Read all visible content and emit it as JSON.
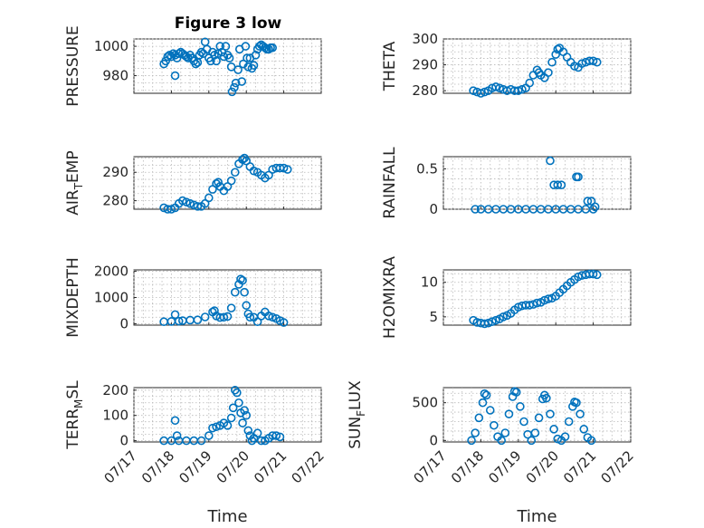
{
  "figure_title": "Figure 3 low",
  "colors": {
    "marker": "#0072bd",
    "axis": "#262626",
    "grid": "#b8b8b8"
  },
  "chart_data": [
    {
      "type": "scatter",
      "ylabel": "PRESSURE",
      "ylim": [
        968,
        1005
      ],
      "yticks": [
        980,
        1000
      ],
      "x": [
        "07/17",
        "07/18",
        "07/19",
        "07/20",
        "07/21",
        "07/22"
      ],
      "grid": true,
      "points": [
        [
          1.8,
          988
        ],
        [
          1.85,
          990
        ],
        [
          1.9,
          993
        ],
        [
          1.95,
          994
        ],
        [
          2.0,
          993
        ],
        [
          2.05,
          995
        ],
        [
          2.1,
          994
        ],
        [
          2.15,
          992
        ],
        [
          2.2,
          995
        ],
        [
          2.25,
          996
        ],
        [
          2.3,
          995
        ],
        [
          2.35,
          994
        ],
        [
          2.4,
          993
        ],
        [
          2.45,
          992
        ],
        [
          2.5,
          994
        ],
        [
          2.55,
          992
        ],
        [
          2.6,
          990
        ],
        [
          2.65,
          988
        ],
        [
          2.7,
          989
        ],
        [
          2.75,
          994
        ],
        [
          2.8,
          996
        ],
        [
          2.85,
          995
        ],
        [
          2.9,
          1003
        ],
        [
          2.95,
          998
        ],
        [
          3.0,
          992
        ],
        [
          3.05,
          990
        ],
        [
          3.1,
          996
        ],
        [
          3.15,
          994
        ],
        [
          3.2,
          990
        ],
        [
          3.25,
          995
        ],
        [
          3.3,
          1000
        ],
        [
          3.35,
          996
        ],
        [
          3.4,
          993
        ],
        [
          3.45,
          1000
        ],
        [
          3.5,
          994
        ],
        [
          3.55,
          992
        ],
        [
          3.6,
          986
        ],
        [
          3.62,
          969
        ],
        [
          3.68,
          972
        ],
        [
          3.72,
          975
        ],
        [
          3.78,
          984
        ],
        [
          3.82,
          998
        ],
        [
          3.88,
          976
        ],
        [
          3.92,
          988
        ],
        [
          3.98,
          1000
        ],
        [
          4.02,
          992
        ],
        [
          4.05,
          986
        ],
        [
          4.1,
          992
        ],
        [
          4.15,
          985
        ],
        [
          4.2,
          987
        ],
        [
          4.25,
          994
        ],
        [
          4.3,
          998
        ],
        [
          4.35,
          1000
        ],
        [
          4.4,
          1001
        ],
        [
          4.45,
          1000
        ],
        [
          4.5,
          999
        ],
        [
          4.55,
          998
        ],
        [
          4.6,
          998
        ],
        [
          4.65,
          999
        ],
        [
          4.7,
          999
        ],
        [
          2.1,
          980
        ]
      ]
    },
    {
      "type": "scatter",
      "ylabel": "THETA",
      "ylim": [
        279,
        300
      ],
      "yticks": [
        280,
        290,
        300
      ],
      "x": [
        "07/17",
        "07/18",
        "07/19",
        "07/20",
        "07/21",
        "07/22"
      ],
      "grid": true,
      "points": [
        [
          1.8,
          280
        ],
        [
          1.9,
          279.5
        ],
        [
          2.0,
          279
        ],
        [
          2.1,
          279.5
        ],
        [
          2.2,
          280
        ],
        [
          2.3,
          281
        ],
        [
          2.4,
          281.5
        ],
        [
          2.5,
          281
        ],
        [
          2.6,
          280.5
        ],
        [
          2.7,
          280
        ],
        [
          2.8,
          280.5
        ],
        [
          2.9,
          280
        ],
        [
          3.0,
          280
        ],
        [
          3.1,
          280.5
        ],
        [
          3.2,
          281
        ],
        [
          3.3,
          283
        ],
        [
          3.4,
          286
        ],
        [
          3.5,
          288
        ],
        [
          3.55,
          287
        ],
        [
          3.6,
          286
        ],
        [
          3.7,
          285
        ],
        [
          3.8,
          287
        ],
        [
          3.9,
          291
        ],
        [
          4.0,
          294
        ],
        [
          4.05,
          296
        ],
        [
          4.1,
          296.5
        ],
        [
          4.2,
          295
        ],
        [
          4.3,
          293
        ],
        [
          4.4,
          291
        ],
        [
          4.5,
          289.5
        ],
        [
          4.6,
          289
        ],
        [
          4.7,
          290.5
        ],
        [
          4.8,
          291
        ],
        [
          4.9,
          291.5
        ],
        [
          5.0,
          291.5
        ],
        [
          5.1,
          291
        ]
      ]
    },
    {
      "type": "scatter",
      "ylabel": "AIR_TEMP",
      "ylim": [
        277,
        295.5
      ],
      "yticks": [
        280,
        290
      ],
      "x": [
        "07/17",
        "07/18",
        "07/19",
        "07/20",
        "07/21",
        "07/22"
      ],
      "grid": true,
      "points": [
        [
          1.8,
          277.5
        ],
        [
          1.9,
          277
        ],
        [
          2.0,
          277
        ],
        [
          2.1,
          277.5
        ],
        [
          2.2,
          279
        ],
        [
          2.3,
          280
        ],
        [
          2.4,
          279.5
        ],
        [
          2.5,
          279
        ],
        [
          2.6,
          278.5
        ],
        [
          2.7,
          278
        ],
        [
          2.8,
          278
        ],
        [
          2.9,
          279
        ],
        [
          3.0,
          281
        ],
        [
          3.1,
          284
        ],
        [
          3.2,
          286
        ],
        [
          3.25,
          286.5
        ],
        [
          3.3,
          285
        ],
        [
          3.4,
          283.5
        ],
        [
          3.5,
          285
        ],
        [
          3.6,
          287
        ],
        [
          3.7,
          290
        ],
        [
          3.8,
          293
        ],
        [
          3.9,
          294.5
        ],
        [
          3.95,
          295
        ],
        [
          4.0,
          294
        ],
        [
          4.1,
          292
        ],
        [
          4.2,
          290.5
        ],
        [
          4.3,
          290
        ],
        [
          4.4,
          289
        ],
        [
          4.5,
          288
        ],
        [
          4.6,
          289
        ],
        [
          4.7,
          291
        ],
        [
          4.8,
          291.5
        ],
        [
          4.9,
          291.5
        ],
        [
          5.0,
          291.5
        ],
        [
          5.1,
          291
        ]
      ]
    },
    {
      "type": "scatter",
      "ylabel": "RAINFALL",
      "ylim": [
        0,
        0.65
      ],
      "yticks": [
        0,
        0.5
      ],
      "x": [
        "07/17",
        "07/18",
        "07/19",
        "07/20",
        "07/21",
        "07/22"
      ],
      "grid": true,
      "points": [
        [
          1.85,
          0
        ],
        [
          2.0,
          0
        ],
        [
          2.2,
          0
        ],
        [
          2.4,
          0
        ],
        [
          2.6,
          0
        ],
        [
          2.8,
          0
        ],
        [
          3.0,
          0
        ],
        [
          3.2,
          0
        ],
        [
          3.4,
          0
        ],
        [
          3.6,
          0
        ],
        [
          3.8,
          0
        ],
        [
          4.0,
          0
        ],
        [
          4.2,
          0
        ],
        [
          4.4,
          0
        ],
        [
          4.6,
          0
        ],
        [
          4.8,
          0
        ],
        [
          5.0,
          0
        ],
        [
          3.85,
          0.6
        ],
        [
          3.95,
          0.3
        ],
        [
          4.05,
          0.3
        ],
        [
          4.15,
          0.3
        ],
        [
          4.55,
          0.4
        ],
        [
          4.6,
          0.4
        ],
        [
          4.85,
          0.1
        ],
        [
          4.95,
          0.1
        ],
        [
          5.05,
          0.03
        ]
      ]
    },
    {
      "type": "scatter",
      "ylabel": "MIXDEPTH",
      "ylim": [
        -50,
        2050
      ],
      "yticks": [
        0,
        1000,
        2000
      ],
      "x": [
        "07/17",
        "07/18",
        "07/19",
        "07/20",
        "07/21",
        "07/22"
      ],
      "grid": true,
      "points": [
        [
          1.8,
          80
        ],
        [
          2.0,
          90
        ],
        [
          2.1,
          350
        ],
        [
          2.2,
          100
        ],
        [
          2.3,
          120
        ],
        [
          2.5,
          140
        ],
        [
          2.7,
          150
        ],
        [
          2.9,
          260
        ],
        [
          3.1,
          450
        ],
        [
          3.15,
          500
        ],
        [
          3.2,
          300
        ],
        [
          3.3,
          240
        ],
        [
          3.4,
          250
        ],
        [
          3.5,
          280
        ],
        [
          3.6,
          600
        ],
        [
          3.7,
          1200
        ],
        [
          3.8,
          1500
        ],
        [
          3.85,
          1700
        ],
        [
          3.9,
          1650
        ],
        [
          3.95,
          1200
        ],
        [
          4.0,
          700
        ],
        [
          4.05,
          380
        ],
        [
          4.1,
          250
        ],
        [
          4.2,
          250
        ],
        [
          4.3,
          80
        ],
        [
          4.4,
          300
        ],
        [
          4.5,
          450
        ],
        [
          4.6,
          300
        ],
        [
          4.7,
          250
        ],
        [
          4.8,
          200
        ],
        [
          4.9,
          120
        ],
        [
          5.0,
          50
        ]
      ]
    },
    {
      "type": "scatter",
      "ylabel": "H2OMIXRA",
      "ylim": [
        3.8,
        11.8
      ],
      "yticks": [
        5,
        10
      ],
      "x": [
        "07/17",
        "07/18",
        "07/19",
        "07/20",
        "07/21",
        "07/22"
      ],
      "grid": true,
      "points": [
        [
          1.8,
          4.5
        ],
        [
          1.9,
          4.2
        ],
        [
          2.0,
          4.1
        ],
        [
          2.1,
          4.0
        ],
        [
          2.2,
          4.1
        ],
        [
          2.3,
          4.3
        ],
        [
          2.4,
          4.5
        ],
        [
          2.5,
          4.7
        ],
        [
          2.6,
          5.0
        ],
        [
          2.7,
          5.2
        ],
        [
          2.8,
          5.5
        ],
        [
          2.9,
          6.0
        ],
        [
          3.0,
          6.4
        ],
        [
          3.1,
          6.6
        ],
        [
          3.2,
          6.7
        ],
        [
          3.3,
          6.7
        ],
        [
          3.4,
          6.8
        ],
        [
          3.5,
          7.0
        ],
        [
          3.6,
          7.1
        ],
        [
          3.7,
          7.4
        ],
        [
          3.8,
          7.6
        ],
        [
          3.9,
          7.7
        ],
        [
          4.0,
          8.0
        ],
        [
          4.1,
          8.5
        ],
        [
          4.2,
          9.0
        ],
        [
          4.3,
          9.5
        ],
        [
          4.4,
          10.0
        ],
        [
          4.5,
          10.4
        ],
        [
          4.6,
          10.8
        ],
        [
          4.7,
          11.0
        ],
        [
          4.8,
          11.1
        ],
        [
          4.9,
          11.2
        ],
        [
          5.0,
          11.2
        ],
        [
          5.1,
          11.1
        ]
      ]
    },
    {
      "type": "scatter",
      "ylabel": "TERR_MSL",
      "ylim": [
        -5,
        210
      ],
      "yticks": [
        0,
        100,
        200
      ],
      "x": [
        "07/17",
        "07/18",
        "07/19",
        "07/20",
        "07/21",
        "07/22"
      ],
      "xlabel": "Time",
      "grid": true,
      "points": [
        [
          1.8,
          0
        ],
        [
          2.0,
          0
        ],
        [
          2.2,
          0
        ],
        [
          2.4,
          0
        ],
        [
          2.6,
          0
        ],
        [
          2.8,
          0
        ],
        [
          2.1,
          80
        ],
        [
          2.15,
          20
        ],
        [
          3.0,
          20
        ],
        [
          3.1,
          50
        ],
        [
          3.2,
          55
        ],
        [
          3.3,
          60
        ],
        [
          3.4,
          70
        ],
        [
          3.5,
          60
        ],
        [
          3.6,
          90
        ],
        [
          3.65,
          130
        ],
        [
          3.7,
          200
        ],
        [
          3.75,
          190
        ],
        [
          3.8,
          150
        ],
        [
          3.85,
          110
        ],
        [
          3.9,
          70
        ],
        [
          3.95,
          120
        ],
        [
          4.0,
          100
        ],
        [
          4.05,
          40
        ],
        [
          4.1,
          20
        ],
        [
          4.15,
          0
        ],
        [
          4.2,
          10
        ],
        [
          4.3,
          30
        ],
        [
          4.4,
          0
        ],
        [
          4.5,
          0
        ],
        [
          4.6,
          10
        ],
        [
          4.7,
          20
        ],
        [
          4.8,
          20
        ],
        [
          4.9,
          15
        ]
      ]
    },
    {
      "type": "scatter",
      "ylabel": "SUN_FLUX",
      "ylim": [
        -20,
        700
      ],
      "yticks": [
        0,
        500
      ],
      "x": [
        "07/17",
        "07/18",
        "07/19",
        "07/20",
        "07/21",
        "07/22"
      ],
      "xlabel": "Time",
      "grid": true,
      "points": [
        [
          1.75,
          0
        ],
        [
          1.85,
          100
        ],
        [
          1.95,
          300
        ],
        [
          2.05,
          500
        ],
        [
          2.1,
          620
        ],
        [
          2.15,
          600
        ],
        [
          2.25,
          400
        ],
        [
          2.35,
          200
        ],
        [
          2.45,
          50
        ],
        [
          2.55,
          0
        ],
        [
          2.65,
          100
        ],
        [
          2.75,
          350
        ],
        [
          2.85,
          580
        ],
        [
          2.9,
          650
        ],
        [
          2.95,
          640
        ],
        [
          3.05,
          450
        ],
        [
          3.15,
          250
        ],
        [
          3.25,
          80
        ],
        [
          3.35,
          0
        ],
        [
          3.45,
          100
        ],
        [
          3.55,
          300
        ],
        [
          3.65,
          550
        ],
        [
          3.7,
          600
        ],
        [
          3.75,
          560
        ],
        [
          3.85,
          350
        ],
        [
          3.95,
          150
        ],
        [
          4.05,
          20
        ],
        [
          4.15,
          0
        ],
        [
          4.25,
          50
        ],
        [
          4.35,
          250
        ],
        [
          4.45,
          450
        ],
        [
          4.5,
          510
        ],
        [
          4.55,
          500
        ],
        [
          4.65,
          350
        ],
        [
          4.75,
          150
        ],
        [
          4.85,
          40
        ],
        [
          4.95,
          0
        ]
      ]
    }
  ]
}
